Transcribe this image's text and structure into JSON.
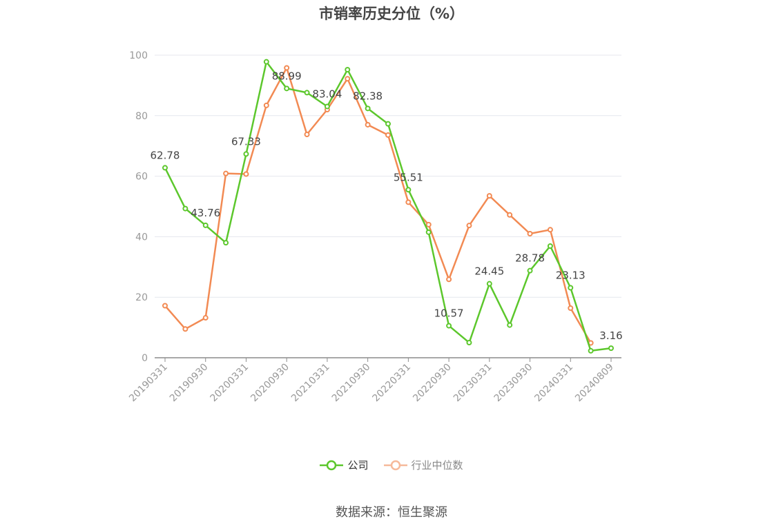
{
  "chart_data": {
    "type": "line",
    "title": "市销率历史分位（%）",
    "ylim": [
      0,
      100
    ],
    "yticks": [
      0,
      20,
      40,
      60,
      80,
      100
    ],
    "x": [
      "20190331",
      "20190630",
      "20190930",
      "20191231",
      "20200331",
      "20200630",
      "20200930",
      "20201231",
      "20210331",
      "20210630",
      "20210930",
      "20211231",
      "20220331",
      "20220630",
      "20220930",
      "20221231",
      "20230331",
      "20230630",
      "20230930",
      "20231231",
      "20240331",
      "20240630",
      "20240809"
    ],
    "xtick_labels": [
      "20190331",
      "20190930",
      "20200331",
      "20200930",
      "20210331",
      "20210930",
      "20220331",
      "20220930",
      "20230331",
      "20230930",
      "20240331",
      "20240809"
    ],
    "series": [
      {
        "name": "公司",
        "color": "#5cc72c",
        "values": [
          62.78,
          49.3,
          43.76,
          38.0,
          67.33,
          97.8,
          88.99,
          87.6,
          83.04,
          95.2,
          82.38,
          77.3,
          55.51,
          41.5,
          10.57,
          5.0,
          24.45,
          10.8,
          28.78,
          36.9,
          23.13,
          2.3,
          3.16
        ],
        "labels": [
          "62.78",
          "",
          "43.76",
          "",
          "67.33",
          "",
          "88.99",
          "",
          "83.04",
          "",
          "82.38",
          "",
          "55.51",
          "",
          "10.57",
          "",
          "24.45",
          "",
          "28.78",
          "",
          "23.13",
          "",
          "3.16"
        ]
      },
      {
        "name": "行业中位数",
        "color": "#f28a53",
        "values": [
          17.2,
          9.5,
          13.2,
          60.9,
          60.7,
          83.4,
          95.8,
          73.8,
          82.0,
          92.2,
          77.0,
          73.6,
          51.4,
          44.0,
          25.9,
          43.7,
          53.5,
          47.2,
          41.0,
          42.3,
          16.4,
          4.9,
          null
        ]
      }
    ],
    "grid": true,
    "legend_position": "bottom-center"
  },
  "source": "数据来源：恒生聚源"
}
